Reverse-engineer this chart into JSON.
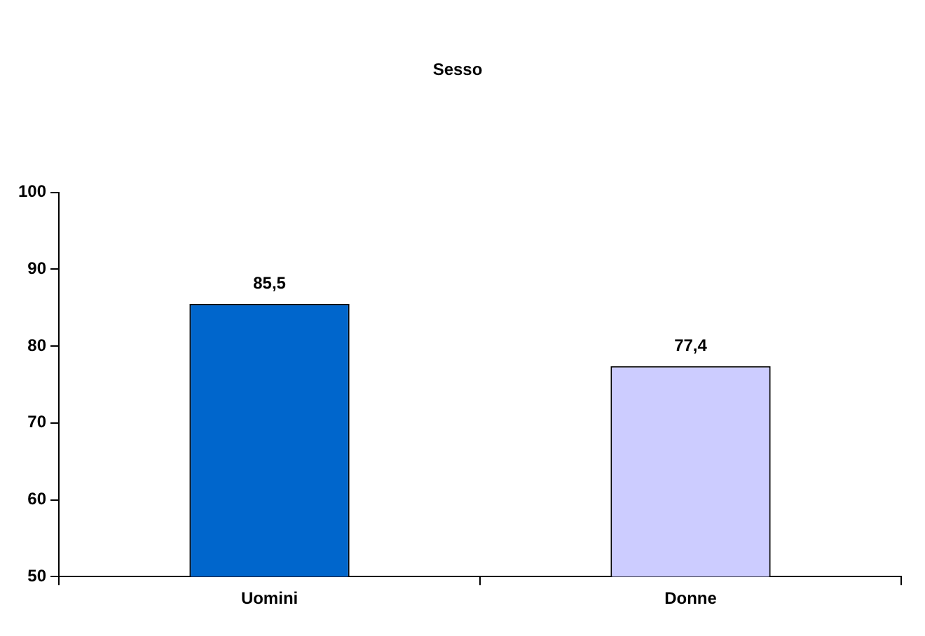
{
  "chart_data": {
    "type": "bar",
    "title": "Sesso",
    "categories": [
      "Uomini",
      "Donne"
    ],
    "values": [
      85.5,
      77.4
    ],
    "colors": [
      "#0066cc",
      "#ccccff"
    ],
    "value_labels": [
      "85,5",
      "77,4"
    ],
    "ylim": [
      50,
      100
    ],
    "yticks": [
      50,
      60,
      70,
      80,
      90,
      100
    ],
    "grid": false,
    "legend": false
  }
}
